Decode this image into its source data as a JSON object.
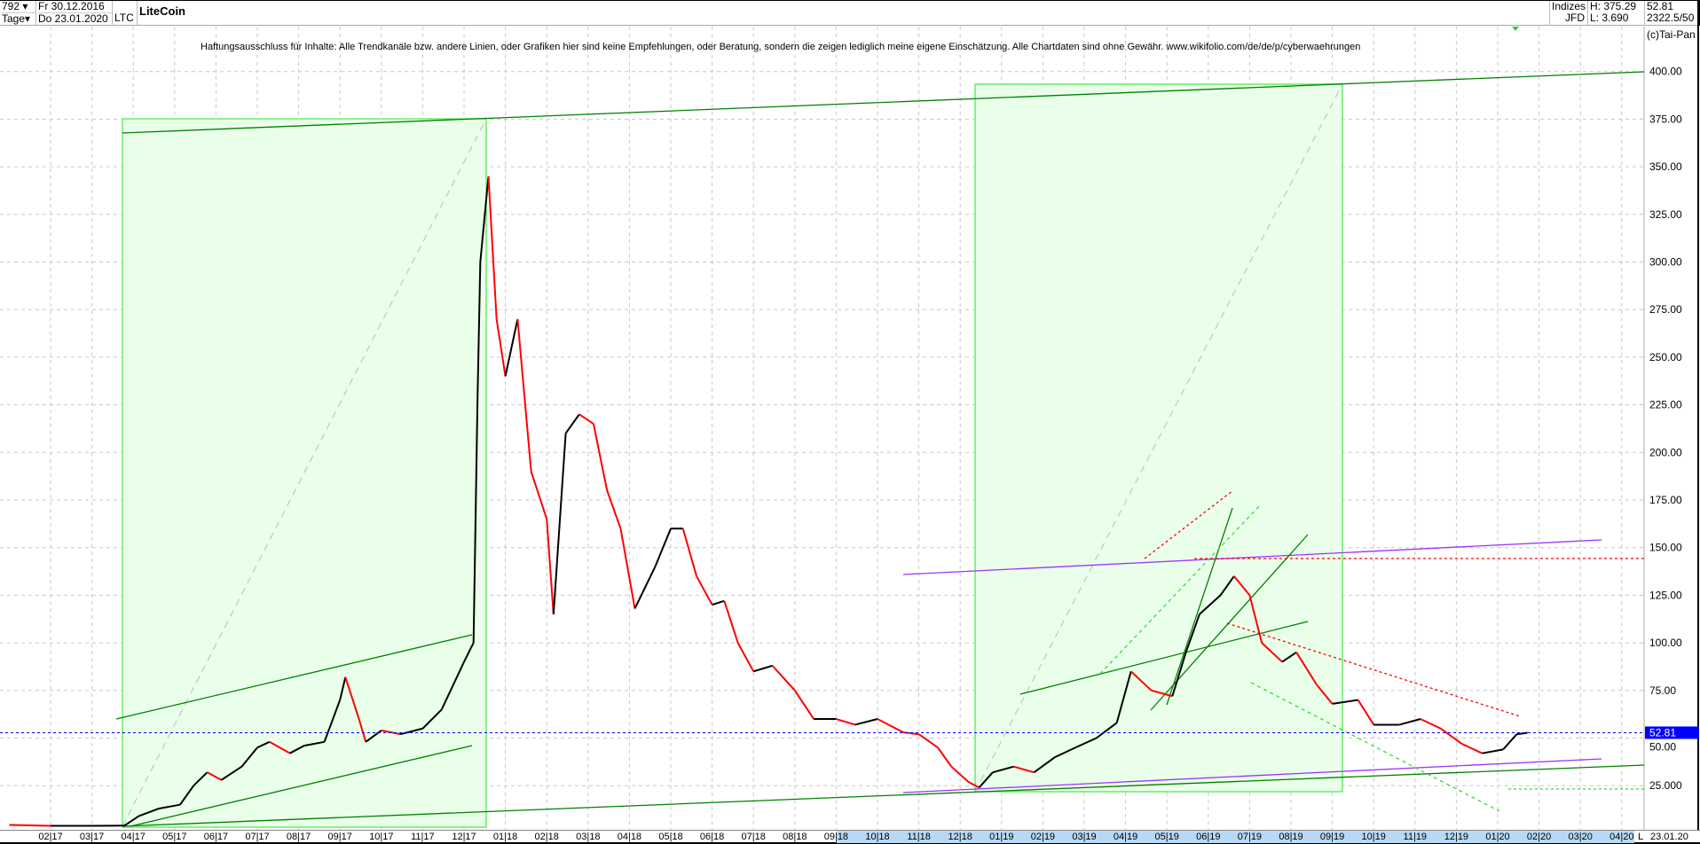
{
  "header": {
    "count": "792",
    "period": "Tage",
    "date_from": "Fr 30.12.2016",
    "date_to": "Do 23.01.2020",
    "symbol": "LTC",
    "title": "LiteCoin",
    "exchange_group": "Indizes",
    "exchange": "JFD",
    "high": "H: 375.29",
    "low": "L: 3.690",
    "last": "52.81",
    "scale": "2322.5/50"
  },
  "disclaimer": "Haftungsausschluss für Inhalte: Alle Trendkanäle bzw. andere Linien, oder Grafiken hier sind keine Empfehlungen, oder Beratung, sondern die zeigen lediglich meine eigene Einschätzung. Alle Chartdaten sind ohne Gewähr.  www.wikifolio.com/de/de/p/cyberwaehrungen",
  "copyright": "(c)Tai-Pan",
  "axis_footer": {
    "scale_mode": "L",
    "current_date": "23.01.20"
  },
  "colors": {
    "up": "#000000",
    "down": "#ff0000",
    "trend": "#008000",
    "box": "#66ee66",
    "box_fill": "#eaffea",
    "channel": "#9933ff",
    "last_price": "#0000ff"
  },
  "chart_data": {
    "type": "line",
    "title": "LiteCoin",
    "ylim": [
      0,
      400
    ],
    "yticks": [
      "25.000",
      "50.00",
      "75.00",
      "100.00",
      "125.00",
      "150.00",
      "175.00",
      "200.00",
      "225.00",
      "250.00",
      "275.00",
      "300.00",
      "325.00",
      "350.00",
      "375.00",
      "400.00"
    ],
    "xticks": [
      "02 17",
      "03 17",
      "04 17",
      "05 17",
      "06 17",
      "07 17",
      "08 17",
      "09 17",
      "10 17",
      "11 17",
      "12 17",
      "01 18",
      "02 18",
      "03 18",
      "04 18",
      "05 18",
      "06 18",
      "07 18",
      "08 18",
      "09 18",
      "10 18",
      "11 18",
      "12 18",
      "01 19",
      "02 19",
      "03 19",
      "04 19",
      "05 19",
      "06 19",
      "07 19",
      "08 19",
      "09 19",
      "10 19",
      "11 19",
      "12 19",
      "01 20",
      "02 20",
      "03 20",
      "04 20"
    ],
    "last_price_label": "52.81",
    "grid": true,
    "x": [
      "2017-01-01",
      "2017-02-01",
      "2017-03-01",
      "2017-03-25",
      "2017-04-05",
      "2017-04-20",
      "2017-05-05",
      "2017-05-15",
      "2017-05-25",
      "2017-06-05",
      "2017-06-20",
      "2017-07-01",
      "2017-07-10",
      "2017-07-25",
      "2017-08-05",
      "2017-08-20",
      "2017-09-01",
      "2017-09-05",
      "2017-09-15",
      "2017-09-20",
      "2017-10-01",
      "2017-10-15",
      "2017-11-01",
      "2017-11-15",
      "2017-12-01",
      "2017-12-08",
      "2017-12-11",
      "2017-12-13",
      "2017-12-19",
      "2017-12-25",
      "2018-01-01",
      "2018-01-10",
      "2018-01-20",
      "2018-02-01",
      "2018-02-06",
      "2018-02-15",
      "2018-02-25",
      "2018-03-05",
      "2018-03-15",
      "2018-03-25",
      "2018-04-05",
      "2018-04-20",
      "2018-05-01",
      "2018-05-10",
      "2018-05-20",
      "2018-06-01",
      "2018-06-10",
      "2018-06-20",
      "2018-07-01",
      "2018-07-15",
      "2018-08-01",
      "2018-08-15",
      "2018-09-01",
      "2018-09-15",
      "2018-10-01",
      "2018-10-20",
      "2018-11-01",
      "2018-11-15",
      "2018-11-25",
      "2018-12-07",
      "2018-12-15",
      "2018-12-25",
      "2019-01-10",
      "2019-01-25",
      "2019-02-10",
      "2019-02-25",
      "2019-03-10",
      "2019-03-25",
      "2019-04-05",
      "2019-04-20",
      "2019-05-05",
      "2019-05-15",
      "2019-05-25",
      "2019-06-10",
      "2019-06-20",
      "2019-07-01",
      "2019-07-10",
      "2019-07-25",
      "2019-08-05",
      "2019-08-20",
      "2019-09-01",
      "2019-09-20",
      "2019-10-01",
      "2019-10-20",
      "2019-11-05",
      "2019-11-20",
      "2019-12-05",
      "2019-12-20",
      "2020-01-05",
      "2020-01-15",
      "2020-01-23"
    ],
    "values": [
      4.4,
      3.9,
      3.9,
      4,
      9,
      13,
      15,
      25,
      32,
      28,
      35,
      45,
      48,
      42,
      46,
      48,
      70,
      82,
      60,
      48,
      54,
      52,
      55,
      65,
      90,
      100,
      230,
      300,
      345,
      270,
      240,
      270,
      190,
      165,
      115,
      210,
      220,
      215,
      180,
      160,
      118,
      140,
      160,
      160,
      135,
      120,
      122,
      100,
      85,
      88,
      75,
      60,
      60,
      57,
      60,
      53,
      52,
      45,
      35,
      27,
      24,
      32,
      35,
      32,
      40,
      45,
      50,
      58,
      85,
      75,
      72,
      95,
      115,
      125,
      135,
      125,
      100,
      90,
      95,
      78,
      68,
      70,
      57,
      57,
      60,
      55,
      47,
      42,
      44,
      52,
      52.81
    ]
  }
}
